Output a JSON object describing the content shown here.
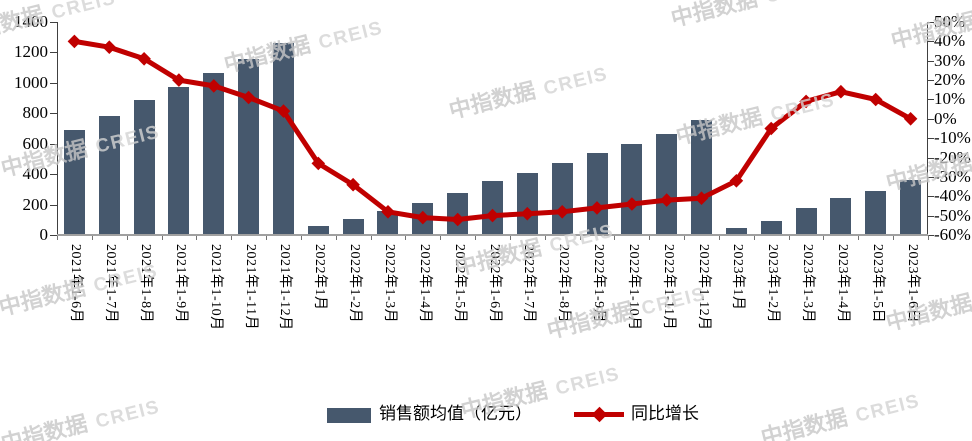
{
  "watermark": {
    "brand": "中指数据",
    "suffix": "CREIS"
  },
  "legend": {
    "bar_label": "销售额均值（亿元）",
    "line_label": "同比增长"
  },
  "colors": {
    "bar": "#46586D",
    "line": "#C00000",
    "axis_line": "#404040",
    "baseline": "#A0A0A0",
    "text": "#000000",
    "watermark": "#C7C7C7"
  },
  "left_axis": {
    "tick_labels": [
      "1400",
      "1200",
      "1000",
      "800",
      "600",
      "400",
      "200",
      "0"
    ]
  },
  "right_axis": {
    "tick_labels": [
      "50%",
      "40%",
      "30%",
      "20%",
      "10%",
      "0%",
      "-10%",
      "-20%",
      "-30%",
      "-40%",
      "-50%",
      "-60%"
    ]
  },
  "chart_data": {
    "type": "bar",
    "subtype": "bar+line combo, dual axis",
    "title": "",
    "xlabel": "",
    "ylabel_left": "销售额均值（亿元）",
    "ylabel_right": "同比增长",
    "grid": false,
    "legend_position": "bottom",
    "left_axis_range": [
      0,
      1400
    ],
    "left_axis_step": 200,
    "right_axis_range": [
      -60,
      50
    ],
    "right_axis_step": 10,
    "categories": [
      "2021年1-6月",
      "2021年1-7月",
      "2021年1-8月",
      "2021年1-9月",
      "2021年1-10月",
      "2021年1-11月",
      "2021年1-12月",
      "2022年1月",
      "2022年1-2月",
      "2022年1-3月",
      "2022年1-4月",
      "2022年1-5月",
      "2022年1-6月",
      "2022年1-7月",
      "2022年1-8月",
      "2022年1-9月",
      "2022年1-10月",
      "2022年1-11月",
      "2022年1-12月",
      "2023年1月",
      "2023年1-2月",
      "2023年1-3月",
      "2023年1-4月",
      "2023年1-5日",
      "2023年1-6日"
    ],
    "series": [
      {
        "name": "销售额均值（亿元）",
        "type": "bar",
        "y_axis": "left",
        "color": "#46586D",
        "values": [
          690,
          780,
          890,
          975,
          1065,
          1155,
          1265,
          60,
          105,
          160,
          210,
          275,
          355,
          410,
          470,
          540,
          600,
          665,
          755,
          45,
          95,
          175,
          240,
          290,
          360
        ]
      },
      {
        "name": "同比增长",
        "type": "line",
        "y_axis": "right",
        "color": "#C00000",
        "marker": "diamond",
        "values_pct": [
          40,
          37,
          31,
          20,
          17,
          11,
          4,
          -23,
          -34,
          -48,
          -51,
          -52,
          -50,
          -49,
          -48,
          -46,
          -44,
          -42,
          -41,
          -32,
          -5,
          9,
          14,
          10,
          0
        ]
      }
    ]
  }
}
